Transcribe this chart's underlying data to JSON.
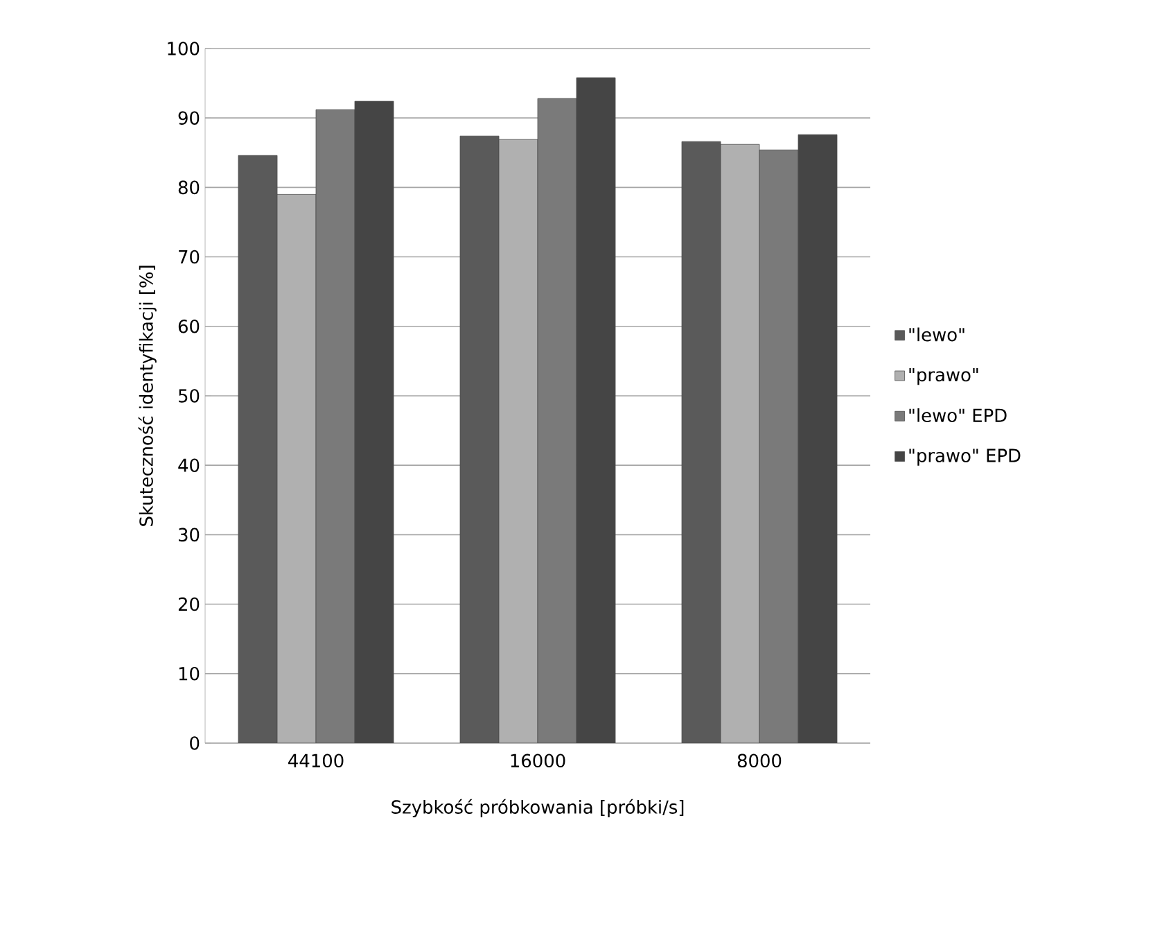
{
  "chart_data": {
    "type": "bar",
    "xlabel": "Szybkość próbkowania [próbki/s]",
    "ylabel": "Skuteczność identyfikacji  [%]",
    "categories": [
      "44100",
      "16000",
      "8000"
    ],
    "series": [
      {
        "name": "\"lewo\"",
        "color": "#5a5a5a",
        "values": [
          84.6,
          87.4,
          86.6
        ]
      },
      {
        "name": "\"prawo\"",
        "color": "#b0b0b0",
        "values": [
          79.0,
          86.9,
          86.2
        ]
      },
      {
        "name": "\"lewo\" EPD",
        "color": "#7a7a7a",
        "values": [
          91.2,
          92.8,
          85.4
        ]
      },
      {
        "name": "\"prawo\" EPD",
        "color": "#454545",
        "values": [
          92.4,
          95.8,
          87.6
        ]
      }
    ],
    "ylim": [
      0,
      100
    ],
    "yticks": [
      0,
      10,
      20,
      30,
      40,
      50,
      60,
      70,
      80,
      90,
      100
    ],
    "grid": "y",
    "legend": "right"
  }
}
